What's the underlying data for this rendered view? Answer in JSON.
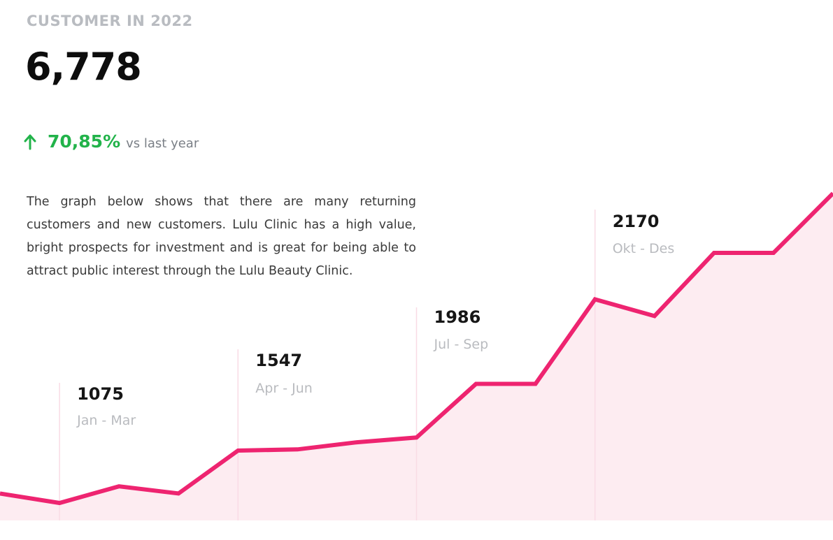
{
  "header": {
    "kicker": "CUSTOMER IN 2022",
    "total": "6,778",
    "growth_pct": "70,85%",
    "growth_suffix": "vs last year",
    "growth_direction": "up"
  },
  "description": "The graph below shows that there are many returning customers and new customers. Lulu Clinic has a high value, bright prospects for investment and is great for being able to attract public interest through the Lulu Beauty Clinic.",
  "colors": {
    "line": "#ee2470",
    "area": "#fdecf1",
    "divider": "#f9dbe5",
    "growth": "#22b34a"
  },
  "chart_data": {
    "type": "area",
    "ylim": [
      800,
      2300
    ],
    "grid": false,
    "series_points": [
      980,
      900,
      1040,
      980,
      1340,
      1350,
      1410,
      1450,
      1900,
      1900,
      2610,
      2470,
      3000,
      3000,
      3500
    ],
    "quarters": [
      {
        "value": "1075",
        "label": "Jan - Mar"
      },
      {
        "value": "1547",
        "label": "Apr - Jun"
      },
      {
        "value": "1986",
        "label": "Jul - Sep"
      },
      {
        "value": "2170",
        "label": "Okt - Des"
      }
    ]
  }
}
